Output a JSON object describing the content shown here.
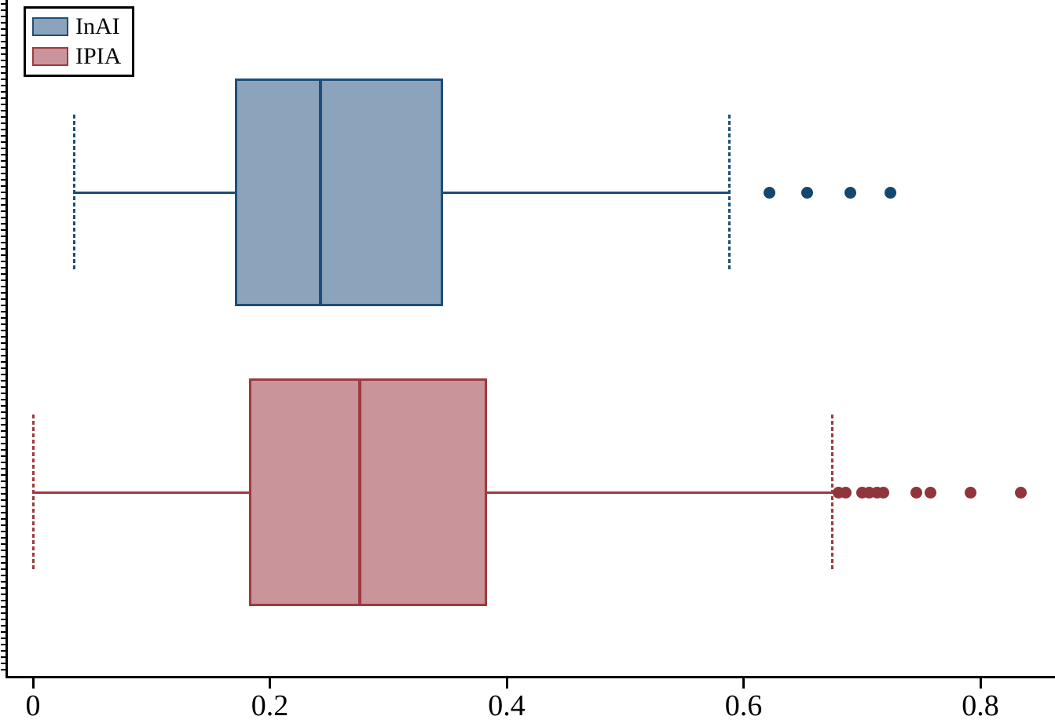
{
  "chart_data": {
    "type": "boxplot",
    "orientation": "horizontal",
    "xlim": [
      0,
      0.865
    ],
    "x_ticks": [
      0,
      0.2,
      0.4,
      0.6,
      0.8
    ],
    "x_tick_labels": [
      "0",
      "0.2",
      "0.4",
      "0.6",
      "0.8"
    ],
    "grid": false,
    "legend": {
      "position": "top-left"
    },
    "series": [
      {
        "name": "InAI",
        "whisker_low": 0.035,
        "q1": 0.172,
        "median": 0.243,
        "q3": 0.345,
        "whisker_high": 0.588,
        "outliers": [
          0.622,
          0.654,
          0.69,
          0.724
        ],
        "fill": "#8ca3bc",
        "stroke": "#1d4e79",
        "dot": "#14466e"
      },
      {
        "name": "IPIA",
        "whisker_low": 0.0,
        "q1": 0.184,
        "median": 0.276,
        "q3": 0.382,
        "whisker_high": 0.675,
        "outliers": [
          0.68,
          0.686,
          0.7,
          0.706,
          0.713,
          0.718,
          0.746,
          0.758,
          0.792,
          0.834
        ],
        "fill": "#c9959a",
        "stroke": "#9d3a3e",
        "dot": "#90353b"
      }
    ]
  }
}
